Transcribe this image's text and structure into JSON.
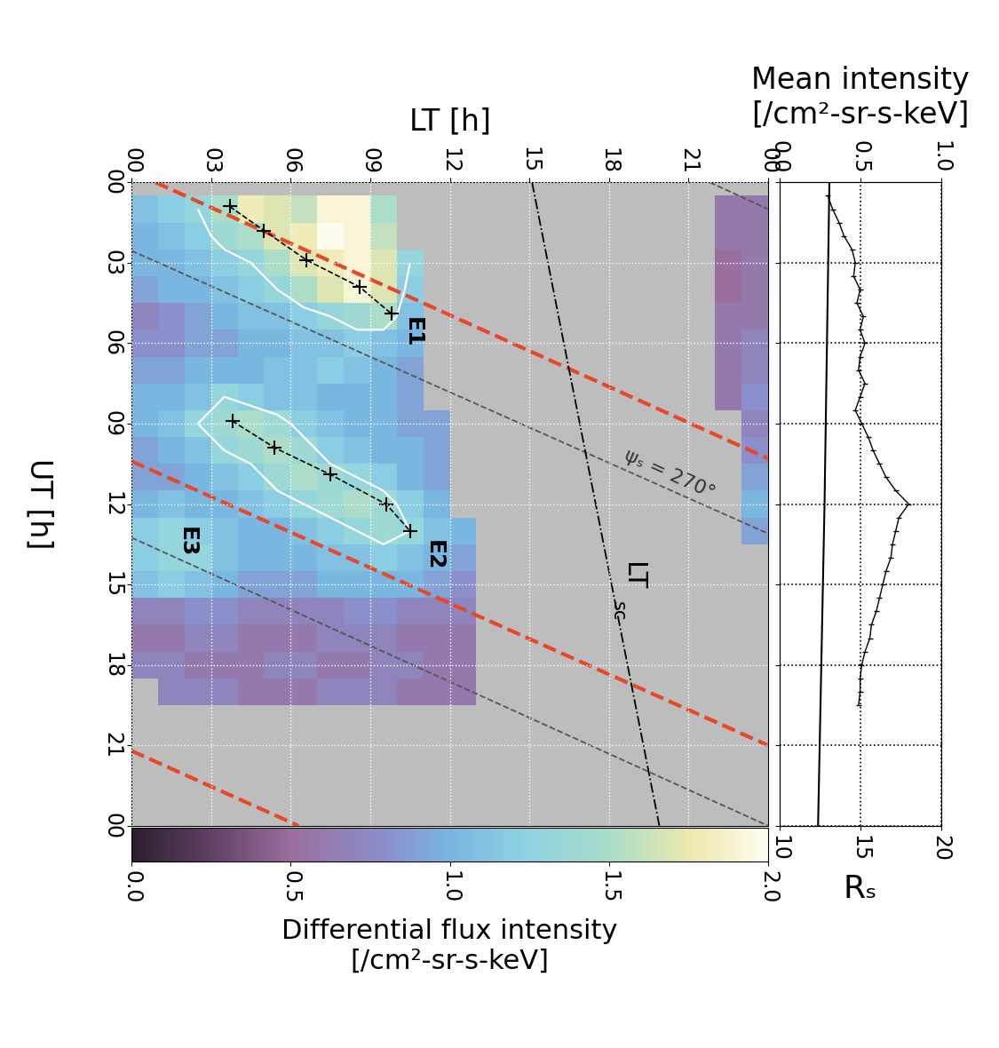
{
  "chart_data": {
    "type": "heatmap",
    "main": {
      "xlabel": "LT [h]",
      "ylabel": "UT [h]",
      "xlim": [
        0,
        24
      ],
      "ylim": [
        24,
        0
      ],
      "xticks": [
        {
          "value": 0,
          "label": "00"
        },
        {
          "value": 3,
          "label": "03"
        },
        {
          "value": 6,
          "label": "06"
        },
        {
          "value": 9,
          "label": "09"
        },
        {
          "value": 12,
          "label": "12"
        },
        {
          "value": 15,
          "label": "15"
        },
        {
          "value": 18,
          "label": "18"
        },
        {
          "value": 21,
          "label": "21"
        },
        {
          "value": 24,
          "label": "00"
        }
      ],
      "yticks": [
        {
          "value": 0,
          "label": "00"
        },
        {
          "value": 3,
          "label": "03"
        },
        {
          "value": 6,
          "label": "06"
        },
        {
          "value": 9,
          "label": "09"
        },
        {
          "value": 12,
          "label": "12"
        },
        {
          "value": 15,
          "label": "15"
        },
        {
          "value": 18,
          "label": "18"
        },
        {
          "value": 21,
          "label": "21"
        },
        {
          "value": 24,
          "label": "00"
        }
      ],
      "grid": true,
      "x_edges": [
        0,
        1,
        2,
        3,
        4,
        5,
        6,
        7,
        8,
        9,
        10,
        11,
        12,
        13,
        14,
        15,
        16,
        17,
        18,
        19,
        20,
        21,
        22,
        23,
        24
      ],
      "y_edges": [
        0.5,
        1.5,
        2.5,
        3.5,
        4.5,
        5.5,
        6.5,
        7.5,
        8.5,
        9.5,
        10.5,
        11.5,
        12.5,
        13.5,
        14.5,
        15.5,
        16.5,
        17.5,
        18.5,
        19.5
      ],
      "cells": [
        [
          1.1,
          1.2,
          1.3,
          1.5,
          1.8,
          1.7,
          1.6,
          1.9,
          1.9,
          1.5,
          null,
          null,
          null,
          null,
          null,
          null,
          null,
          null,
          null,
          null,
          null,
          null,
          0.6,
          0.6
        ],
        [
          1.0,
          1.1,
          1.2,
          1.4,
          1.5,
          1.7,
          1.8,
          2.0,
          1.9,
          1.6,
          null,
          null,
          null,
          null,
          null,
          null,
          null,
          null,
          null,
          null,
          null,
          null,
          0.6,
          0.6
        ],
        [
          1.0,
          1.0,
          1.1,
          1.2,
          1.3,
          1.5,
          1.7,
          1.8,
          1.9,
          1.7,
          1.3,
          null,
          null,
          null,
          null,
          null,
          null,
          null,
          null,
          null,
          null,
          null,
          0.5,
          0.6
        ],
        [
          0.9,
          1.0,
          1.0,
          1.1,
          1.2,
          1.3,
          1.5,
          1.7,
          1.9,
          1.7,
          1.2,
          null,
          null,
          null,
          null,
          null,
          null,
          null,
          null,
          null,
          null,
          null,
          0.5,
          0.6
        ],
        [
          0.7,
          0.8,
          0.9,
          1.0,
          1.1,
          1.1,
          1.2,
          1.3,
          1.4,
          1.5,
          1.1,
          null,
          null,
          null,
          null,
          null,
          null,
          null,
          null,
          null,
          null,
          null,
          0.6,
          0.6
        ],
        [
          0.8,
          0.8,
          0.9,
          0.9,
          1.0,
          1.0,
          1.1,
          1.1,
          1.2,
          1.1,
          1.0,
          null,
          null,
          null,
          null,
          null,
          null,
          null,
          null,
          null,
          null,
          null,
          0.6,
          0.7
        ],
        [
          0.9,
          0.9,
          1.0,
          1.0,
          1.0,
          1.1,
          1.1,
          1.2,
          1.1,
          1.0,
          0.9,
          null,
          null,
          null,
          null,
          null,
          null,
          null,
          null,
          null,
          null,
          null,
          0.6,
          0.7
        ],
        [
          1.0,
          1.0,
          1.1,
          1.3,
          1.2,
          1.1,
          1.1,
          1.0,
          1.0,
          1.0,
          0.9,
          null,
          null,
          null,
          null,
          null,
          null,
          null,
          null,
          null,
          null,
          null,
          0.6,
          0.8
        ],
        [
          1.0,
          1.1,
          1.3,
          1.4,
          1.5,
          1.4,
          1.2,
          1.1,
          1.0,
          1.0,
          0.9,
          0.9,
          null,
          null,
          null,
          null,
          null,
          null,
          null,
          null,
          null,
          null,
          null,
          0.7
        ],
        [
          0.9,
          1.0,
          1.1,
          1.3,
          1.4,
          1.5,
          1.4,
          1.2,
          1.1,
          1.0,
          1.0,
          0.9,
          null,
          null,
          null,
          null,
          null,
          null,
          null,
          null,
          null,
          null,
          null,
          0.8
        ],
        [
          0.9,
          0.9,
          1.0,
          1.1,
          1.2,
          1.4,
          1.5,
          1.4,
          1.3,
          1.2,
          1.0,
          0.9,
          null,
          null,
          null,
          null,
          null,
          null,
          null,
          null,
          null,
          null,
          null,
          0.9
        ],
        [
          1.0,
          1.1,
          1.0,
          1.0,
          1.1,
          1.2,
          1.3,
          1.4,
          1.5,
          1.4,
          1.2,
          1.0,
          null,
          null,
          null,
          null,
          null,
          null,
          null,
          null,
          null,
          null,
          null,
          1.0
        ],
        [
          1.2,
          1.3,
          1.2,
          1.1,
          1.0,
          1.0,
          1.1,
          1.2,
          1.3,
          1.4,
          1.3,
          1.1,
          1.0,
          null,
          null,
          null,
          null,
          null,
          null,
          null,
          null,
          null,
          null,
          0.9
        ],
        [
          1.2,
          1.3,
          1.3,
          1.1,
          1.0,
          1.0,
          1.0,
          1.1,
          1.1,
          1.2,
          1.1,
          1.0,
          0.9,
          null,
          null,
          null,
          null,
          null,
          null,
          null,
          null,
          null,
          null,
          null
        ],
        [
          1.1,
          1.2,
          1.1,
          1.0,
          0.9,
          0.9,
          0.9,
          1.0,
          1.0,
          1.0,
          1.0,
          0.9,
          0.8,
          null,
          null,
          null,
          null,
          null,
          null,
          null,
          null,
          null,
          null,
          null
        ],
        [
          0.7,
          0.7,
          0.8,
          0.8,
          0.7,
          0.7,
          0.7,
          0.7,
          0.8,
          0.8,
          0.7,
          0.7,
          0.7,
          null,
          null,
          null,
          null,
          null,
          null,
          null,
          null,
          null,
          null,
          null
        ],
        [
          0.6,
          0.6,
          0.7,
          0.7,
          0.6,
          0.6,
          0.6,
          0.7,
          0.7,
          0.7,
          0.6,
          0.6,
          0.6,
          null,
          null,
          null,
          null,
          null,
          null,
          null,
          null,
          null,
          null,
          null
        ],
        [
          0.7,
          0.7,
          0.6,
          0.6,
          0.6,
          0.7,
          0.7,
          0.6,
          0.6,
          0.7,
          0.7,
          0.6,
          0.6,
          null,
          null,
          null,
          null,
          null,
          null,
          null,
          null,
          null,
          null,
          null
        ],
        [
          null,
          0.7,
          0.7,
          0.7,
          0.6,
          0.6,
          0.6,
          0.7,
          0.7,
          0.7,
          0.6,
          0.6,
          0.6,
          null,
          null,
          null,
          null,
          null,
          null,
          null,
          null,
          null,
          null,
          null
        ]
      ],
      "contour_level": 1.3,
      "lines": [
        {
          "x": [
            0.9,
            24
          ],
          "y": [
            0,
            10.3
          ],
          "color": "#e8472a",
          "line_style": "dashed"
        },
        {
          "x": [
            0,
            24
          ],
          "y": [
            10.4,
            21.0
          ],
          "color": "#e8472a",
          "line_style": "dashed"
        },
        {
          "x": [
            0,
            6.3
          ],
          "y": [
            21.2,
            24
          ],
          "color": "#e8472a",
          "line_style": "dashed"
        },
        {
          "x": [
            21.8,
            24
          ],
          "y": [
            0,
            1.0
          ],
          "color": "#555555",
          "line_style": "dashed"
        },
        {
          "x": [
            0,
            24
          ],
          "y": [
            2.55,
            13.1
          ],
          "color": "#555555",
          "line_style": "dashed"
        },
        {
          "x": [
            0,
            24
          ],
          "y": [
            13.25,
            24
          ],
          "color": "#555555",
          "line_style": "dashed"
        },
        {
          "x": [
            15.1,
            19.9
          ],
          "y": [
            0,
            24
          ],
          "color": "#000000",
          "line_style": "dashdot"
        }
      ],
      "events": [
        {
          "label": "E1",
          "label_x": 10.6,
          "label_y": 5.6,
          "x": [
            3.7,
            5.0,
            6.6,
            8.6,
            9.8
          ],
          "y": [
            0.9,
            1.8,
            2.9,
            3.9,
            4.9
          ]
        },
        {
          "label": "E2",
          "label_x": 11.4,
          "label_y": 13.9,
          "x": [
            3.8,
            5.4,
            7.5,
            9.6,
            10.5
          ],
          "y": [
            8.9,
            9.9,
            10.9,
            12.0,
            13.0
          ]
        },
        {
          "label": "E3",
          "label_x": 2.1,
          "label_y": 13.4,
          "x": [],
          "y": []
        }
      ],
      "annotations": [
        {
          "text": "ψₛ = 270°",
          "x": 20.3,
          "y": 10.9
        }
      ],
      "lt_sc_label": {
        "text": "LT",
        "sub": "sc",
        "x": 18.9,
        "y": 14.7,
        "sub_x": 18.35,
        "sub_y": 16.0
      }
    },
    "colorbar": {
      "label": "Differential flux intensity\n[/cm²-sr-s-keV]",
      "range": [
        0.0,
        2.0
      ],
      "ticks": [
        0.0,
        0.5,
        1.0,
        1.5,
        2.0
      ]
    },
    "side": {
      "xlabel": "Mean intensity\n[/cm²-sr-s-keV]",
      "xlim": [
        0.0,
        1.0
      ],
      "xticks": [
        0.0,
        0.5,
        1.0
      ],
      "x2label": "Rₛ",
      "x2lim": [
        10,
        20
      ],
      "x2ticks": [
        10,
        15,
        20
      ],
      "ylim": [
        24,
        0
      ],
      "yticks": [
        0,
        3,
        6,
        9,
        12,
        15,
        18,
        21,
        24
      ],
      "tick_labels": "x",
      "grid": true,
      "mean_intensity": {
        "ut": [
          0.5,
          1.0,
          1.5,
          2.0,
          2.5,
          3.0,
          3.5,
          4.0,
          4.5,
          5.0,
          5.5,
          6.0,
          6.5,
          7.0,
          7.5,
          8.0,
          8.5,
          9.0,
          9.5,
          10.0,
          10.5,
          11.0,
          11.5,
          12.0,
          12.5,
          13.0,
          13.5,
          14.0,
          14.5,
          15.0,
          15.5,
          16.0,
          16.5,
          17.0,
          17.5,
          18.0,
          18.5,
          19.0,
          19.5
        ],
        "values": [
          0.3,
          0.33,
          0.37,
          0.4,
          0.45,
          0.47,
          0.46,
          0.5,
          0.48,
          0.52,
          0.5,
          0.53,
          0.5,
          0.49,
          0.53,
          0.5,
          0.47,
          0.51,
          0.55,
          0.58,
          0.62,
          0.66,
          0.72,
          0.8,
          0.74,
          0.72,
          0.7,
          0.69,
          0.66,
          0.64,
          0.62,
          0.6,
          0.57,
          0.56,
          0.53,
          0.51,
          0.5,
          0.5,
          0.49
        ],
        "color": "#000000"
      },
      "radius": {
        "ut": [
          0,
          6,
          12,
          18,
          24
        ],
        "values": [
          13.1,
          12.95,
          12.8,
          12.6,
          12.4
        ],
        "color": "#000000"
      }
    }
  }
}
